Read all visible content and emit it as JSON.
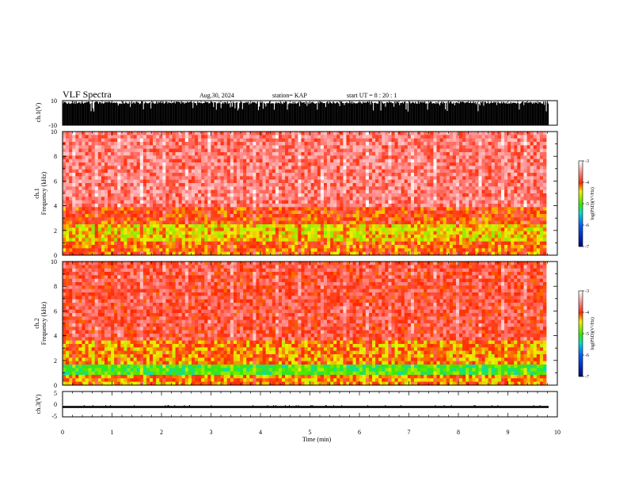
{
  "header": {
    "title": "VLF Spectra",
    "date": "Aug.30, 2024",
    "station": "station= KAP",
    "start": "start  UT =   8  : 20 : 1"
  },
  "chart_data": [
    {
      "type": "line",
      "ylabel": "ch.1(V)",
      "ylim": [
        -10,
        10
      ],
      "yticks": [
        "10",
        "-10"
      ],
      "xlim": [
        0,
        10
      ],
      "fill": "#000000"
    },
    {
      "type": "heatmap",
      "ylabel": "ch.1\nFrequency  (kHz)",
      "ylim": [
        0,
        10
      ],
      "yticks": [
        "0",
        "2",
        "4",
        "6",
        "8",
        "10"
      ],
      "xlim": [
        0,
        9.8
      ],
      "colorbar": {
        "label": "log(PSD)(V²/Hz)",
        "min": -7,
        "max": -3,
        "ticks": [
          "-3",
          "-4",
          "-5",
          "-6",
          "-7"
        ]
      },
      "bands": [
        {
          "from_khz": 0.0,
          "to_khz": 1.2,
          "level": -4.1
        },
        {
          "from_khz": 1.2,
          "to_khz": 2.6,
          "level": -4.4
        },
        {
          "from_khz": 2.6,
          "to_khz": 4.0,
          "level": -4.0
        },
        {
          "from_khz": 4.0,
          "to_khz": 10.0,
          "level": -3.6
        }
      ]
    },
    {
      "type": "heatmap",
      "ylabel": "ch.2\nFrequency  (kHz)",
      "ylim": [
        0,
        10
      ],
      "yticks": [
        "0",
        "2",
        "4",
        "6",
        "8",
        "10"
      ],
      "xlim": [
        0,
        9.8
      ],
      "colorbar": {
        "label": "log(PSD)(V²/Hz)",
        "min": -7,
        "max": -3,
        "ticks": [
          "-3",
          "-4",
          "-5",
          "-6",
          "-7"
        ]
      },
      "bands": [
        {
          "from_khz": 0.0,
          "to_khz": 0.8,
          "level": -4.2
        },
        {
          "from_khz": 0.8,
          "to_khz": 1.8,
          "level": -5.0
        },
        {
          "from_khz": 1.8,
          "to_khz": 3.5,
          "level": -4.2
        },
        {
          "from_khz": 3.5,
          "to_khz": 10.0,
          "level": -3.8
        }
      ]
    },
    {
      "type": "line",
      "ylabel": "ch.3(V)",
      "ylim": [
        -5,
        5
      ],
      "yticks": [
        "5",
        "0",
        "-5"
      ],
      "xlim": [
        0,
        10
      ],
      "signal_range": [
        -1.5,
        -0.7
      ],
      "xlabel": "Time  (min)",
      "xticks": [
        "0",
        "1",
        "2",
        "3",
        "4",
        "5",
        "6",
        "7",
        "8",
        "9",
        "10"
      ]
    }
  ]
}
